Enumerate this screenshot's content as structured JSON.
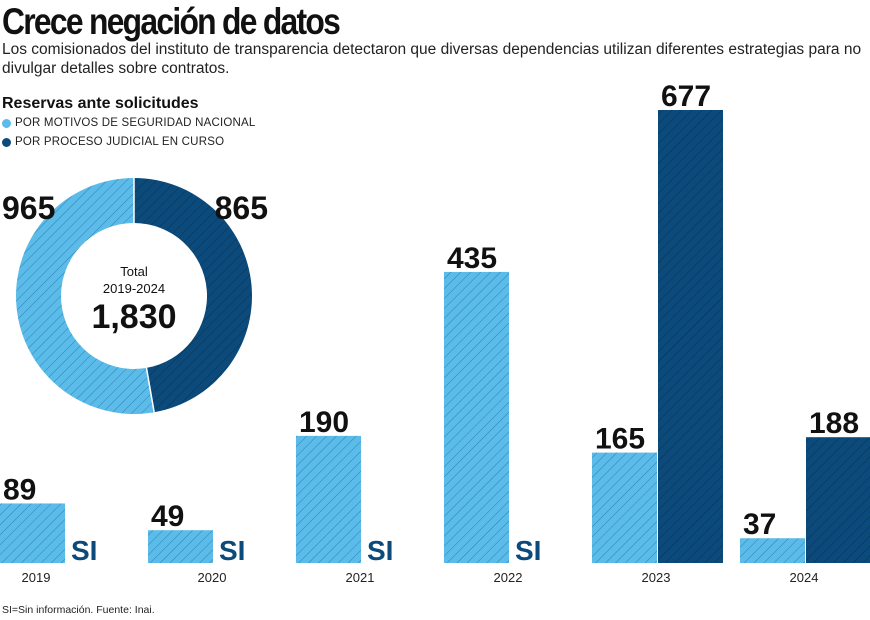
{
  "title": "Crece negación de datos",
  "subtitle": "Los comisionados del instituto de transparencia detectaron que diversas dependencias utilizan diferentes estrategias para no divulgar detalles sobre contratos.",
  "footnote": "SI=Sin información. Fuente: Inai.",
  "colors": {
    "light": "#5bbcea",
    "dark": "#0b4a7a",
    "text": "#111111"
  },
  "chart_data": [
    {
      "type": "pie",
      "subtype": "donut",
      "title": "Total 2019-2024",
      "center_label_1": "Total",
      "center_label_2": "2019-2024",
      "center_value": "1,830",
      "slices": [
        {
          "name": "POR MOTIVOS DE SEGURIDAD NACIONAL",
          "value": 965,
          "label": "965"
        },
        {
          "name": "POR PROCESO JUDICIAL EN CURSO",
          "value": 865,
          "label": "865"
        }
      ]
    },
    {
      "type": "bar",
      "title": "Reservas ante solicitudes",
      "legend_title": "Reservas ante solicitudes",
      "categories": [
        "2019",
        "2020",
        "2021",
        "2022",
        "2023",
        "2024"
      ],
      "series": [
        {
          "name": "POR MOTIVOS DE SEGURIDAD NACIONAL",
          "values": [
            89,
            49,
            190,
            435,
            165,
            37
          ],
          "labels": [
            "89",
            "49",
            "190",
            "435",
            "165",
            "37"
          ]
        },
        {
          "name": "POR PROCESO JUDICIAL EN CURSO",
          "values": [
            null,
            null,
            null,
            null,
            677,
            188
          ],
          "labels": [
            "SI",
            "SI",
            "SI",
            "SI",
            "677",
            "188"
          ]
        }
      ],
      "missing_label": "SI",
      "ylim": [
        0,
        677
      ],
      "grid": false
    }
  ]
}
